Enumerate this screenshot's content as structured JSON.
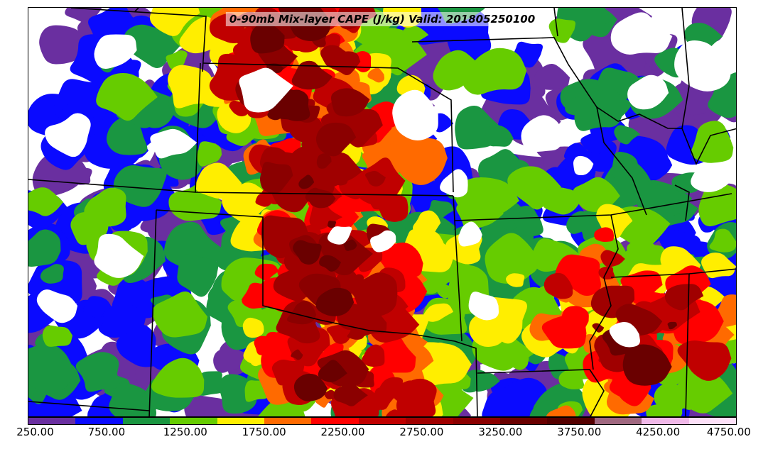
{
  "map": {
    "title": "0-90mb Mix-layer CAPE (J/kg) Valid: 201805250100"
  },
  "legend": {
    "colors": [
      "#6a2fa0",
      "#0a0aff",
      "#1a9641",
      "#66cc00",
      "#ffee00",
      "#ff6a00",
      "#ff0000",
      "#c00000",
      "#a00000",
      "#8b0000",
      "#6a0000",
      "#550000",
      "#a06880",
      "#f0b8e8",
      "#fde0f8"
    ],
    "labels": [
      "250.00",
      "750.00",
      "1250.00",
      "1750.00",
      "2250.00",
      "2750.00",
      "3250.00",
      "3750.00",
      "4250.00",
      "4750.00"
    ]
  }
}
